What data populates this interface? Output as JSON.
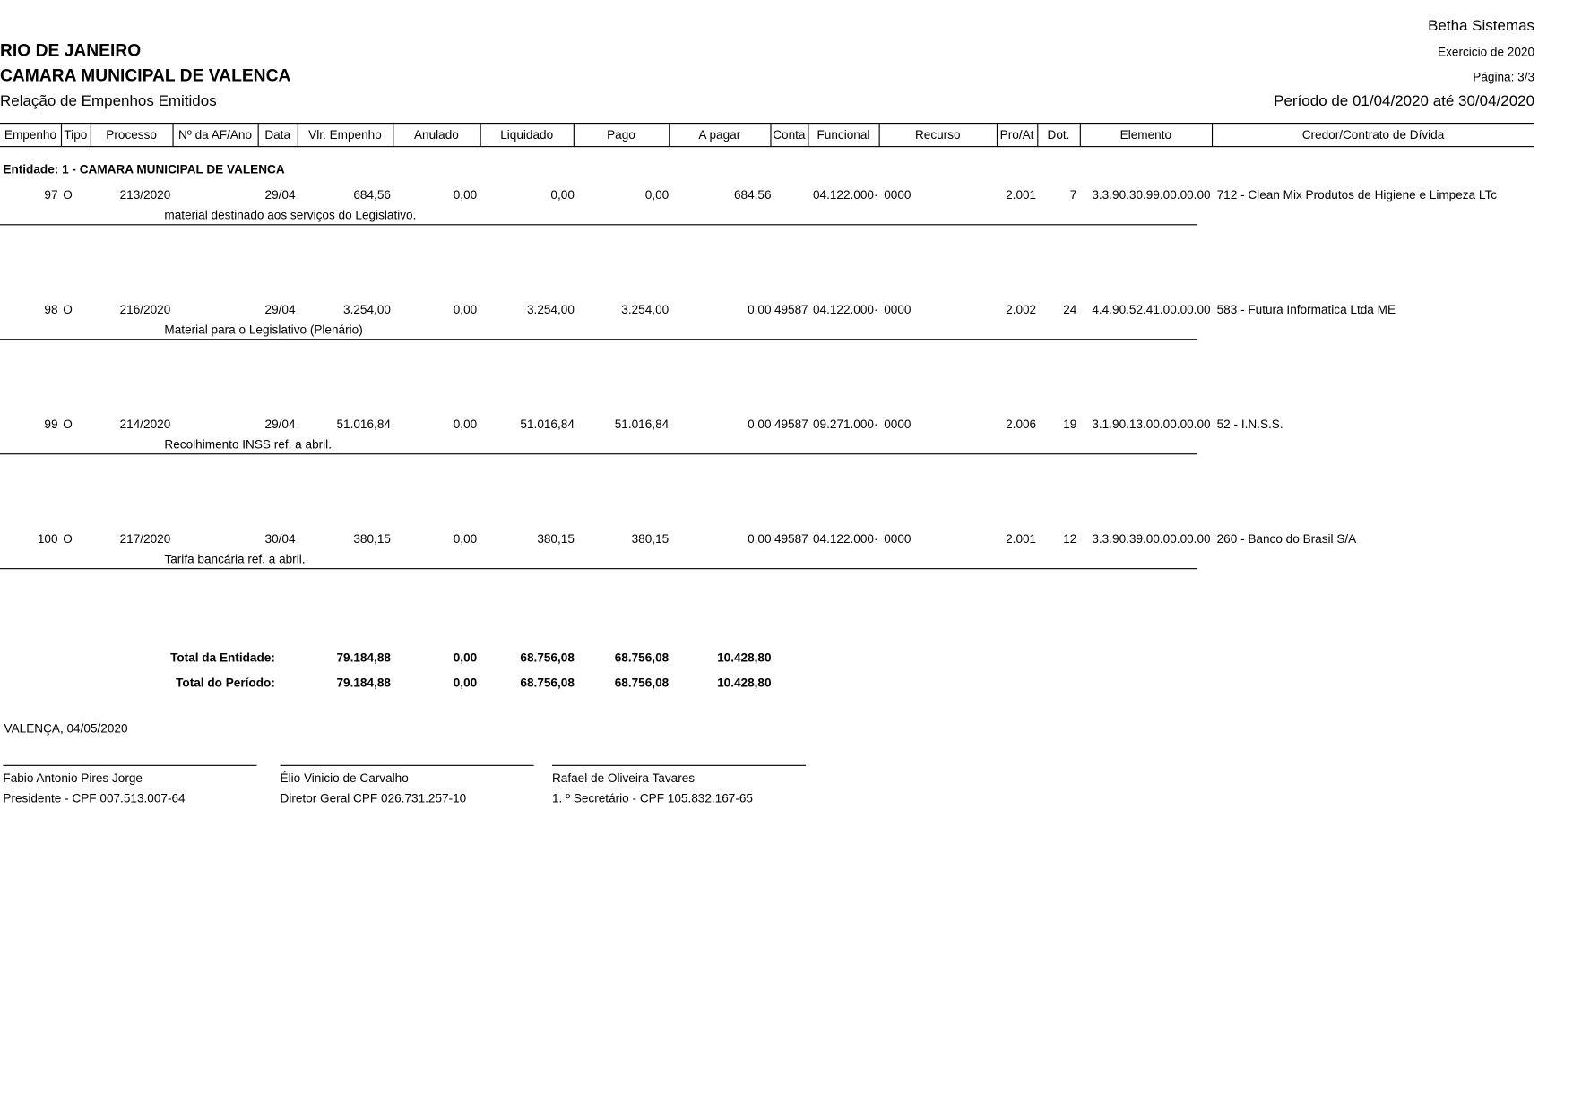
{
  "header": {
    "company": "Betha Sistemas",
    "state": "RIO DE JANEIRO",
    "entity": "CAMARA MUNICIPAL DE VALENCA",
    "report": "Relação de Empenhos Emitidos",
    "exercise": "Exercicio de 2020",
    "page": "Página: 3/3",
    "period": "Período de 01/04/2020 até 30/04/2020"
  },
  "columns": [
    "Empenho",
    "Tipo",
    "Processo",
    "Nº da AF/Ano",
    "Data",
    "Vlr. Empenho",
    "Anulado",
    "Liquidado",
    "Pago",
    "A pagar",
    "Conta",
    "Funcional",
    "Recurso",
    "Pro/At",
    "Dot.",
    "Elemento",
    "Credor/Contrato de Dívida"
  ],
  "entity_line": "Entidade: 1 - CAMARA MUNICIPAL DE VALENCA",
  "rows": [
    {
      "empenho": "97",
      "tipo": "O",
      "processo": "213/2020",
      "data": "29/04",
      "vlr": "684,56",
      "anulado": "0,00",
      "liquidado": "0,00",
      "pago": "0,00",
      "apagar": "684,56",
      "conta": null,
      "funcional": "04.122.000·",
      "recurso": "0000",
      "proat": "2.001",
      "dot": "7",
      "elemento": "3.3.90.30.99.00.00.00",
      "credor": "712 - Clean Mix Produtos de Higiene e Limpeza LTc",
      "descricao": "material destinado aos serviços do Legislativo."
    },
    {
      "empenho": "98",
      "tipo": "O",
      "processo": "216/2020",
      "data": "29/04",
      "vlr": "3.254,00",
      "anulado": "0,00",
      "liquidado": "3.254,00",
      "pago": "3.254,00",
      "apagar": "0,00",
      "conta": "49587",
      "funcional": "04.122.000·",
      "recurso": "0000",
      "proat": "2.002",
      "dot": "24",
      "elemento": "4.4.90.52.41.00.00.00",
      "credor": "583 - Futura Informatica Ltda ME",
      "descricao": "Material para o Legislativo (Plenário)"
    },
    {
      "empenho": "99",
      "tipo": "O",
      "processo": "214/2020",
      "data": "29/04",
      "vlr": "51.016,84",
      "anulado": "0,00",
      "liquidado": "51.016,84",
      "pago": "51.016,84",
      "apagar": "0,00",
      "conta": "49587",
      "funcional": "09.271.000·",
      "recurso": "0000",
      "proat": "2.006",
      "dot": "19",
      "elemento": "3.1.90.13.00.00.00.00",
      "credor": "52 - I.N.S.S.",
      "descricao": "Recolhimento INSS ref. a abril."
    },
    {
      "empenho": "100",
      "tipo": "O",
      "processo": "217/2020",
      "data": "30/04",
      "vlr": "380,15",
      "anulado": "0,00",
      "liquidado": "380,15",
      "pago": "380,15",
      "apagar": "0,00",
      "conta": "49587",
      "funcional": "04.122.000·",
      "recurso": "0000",
      "proat": "2.001",
      "dot": "12",
      "elemento": "3.3.90.39.00.00.00.00",
      "credor": "260 - Banco do Brasil S/A",
      "descricao": "Tarifa bancária ref. a abril."
    }
  ],
  "totals": [
    {
      "label": "Total da Entidade:",
      "vlr": "79.184,88",
      "anulado": "0,00",
      "liquidado": "68.756,08",
      "pago": "68.756,08",
      "apagar": "10.428,80"
    },
    {
      "label": "Total do Período:",
      "vlr": "79.184,88",
      "anulado": "0,00",
      "liquidado": "68.756,08",
      "pago": "68.756,08",
      "apagar": "10.428,80"
    }
  ],
  "place_date": "VALENÇA,  04/05/2020",
  "signatures": [
    {
      "name": "Fabio Antonio Pires Jorge",
      "role": "Presidente - CPF 007.513.007-64"
    },
    {
      "name": "Élio Vinicio de Carvalho",
      "role": "Diretor Geral  CPF 026.731.257-10"
    },
    {
      "name": "Rafael de Oliveira Tavares",
      "role": "1. º Secretário - CPF 105.832.167-65"
    }
  ]
}
